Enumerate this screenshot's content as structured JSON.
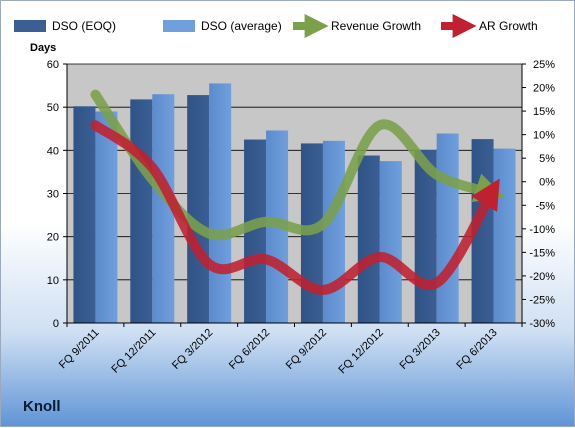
{
  "brand": "Knoll",
  "colors": {
    "dso_eoq": "#3b5f94",
    "dso_avg": "#6f9fdc",
    "revenue_growth": "#7aa04a",
    "ar_growth": "#c0202f",
    "plot_bg": "#c7c7c7"
  },
  "chart_data": {
    "type": "bar",
    "categories": [
      "FQ 9/2011",
      "FQ 12/2011",
      "FQ 3/2012",
      "FQ 6/2012",
      "FQ 9/2012",
      "FQ 12/2012",
      "FQ 3/2013",
      "FQ 6/2013"
    ],
    "ylabel": "Days",
    "ylim": [
      0,
      60
    ],
    "yticks": [
      0,
      10,
      20,
      30,
      40,
      50,
      60
    ],
    "y2lim": [
      -30,
      25
    ],
    "y2ticks": [
      "-30%",
      "-25%",
      "-20%",
      "-15%",
      "-10%",
      "-5%",
      "0%",
      "5%",
      "10%",
      "15%",
      "20%",
      "25%"
    ],
    "y2tick_values": [
      -30,
      -25,
      -20,
      -15,
      -10,
      -5,
      0,
      5,
      10,
      15,
      20,
      25
    ],
    "grid": true,
    "legend_position": "top",
    "series": [
      {
        "name": "DSO (EOQ)",
        "kind": "bar",
        "axis": "left",
        "values": [
          50.2,
          51.8,
          52.8,
          42.5,
          41.6,
          38.8,
          40.1,
          42.6
        ]
      },
      {
        "name": "DSO (average)",
        "kind": "bar",
        "axis": "left",
        "values": [
          49.0,
          53.0,
          55.5,
          44.6,
          42.2,
          37.5,
          43.9,
          40.4
        ]
      },
      {
        "name": "Revenue Growth",
        "kind": "arrow-line",
        "axis": "right",
        "values": [
          18.5,
          0.5,
          -11.0,
          -8.5,
          -9.0,
          12.0,
          1.5,
          -2.5
        ]
      },
      {
        "name": "AR Growth",
        "kind": "arrow-line",
        "axis": "right",
        "values": [
          12.0,
          3.0,
          -17.5,
          -16.5,
          -23.0,
          -16.0,
          -21.5,
          -1.5
        ]
      }
    ]
  }
}
